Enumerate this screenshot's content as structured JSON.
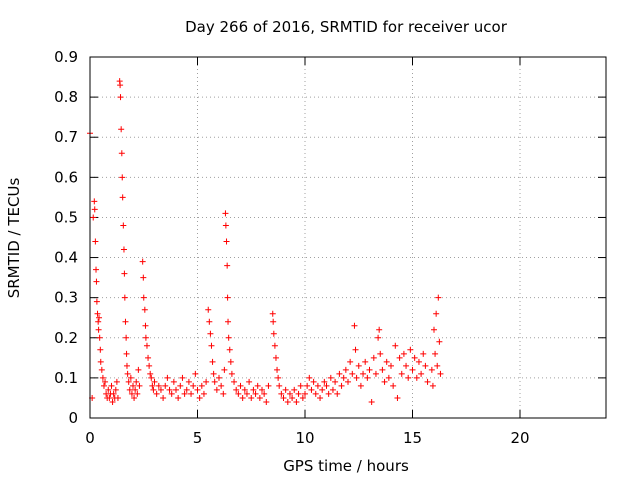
{
  "chart_data": {
    "type": "scatter",
    "title": "Day 266 of 2016, SRMTID for receiver ucor",
    "xlabel": "GPS time / hours",
    "ylabel": "SRMTID / TECUs",
    "xlim": [
      0,
      24
    ],
    "ylim": [
      0,
      0.9
    ],
    "xticks": [
      0,
      5,
      10,
      15,
      20
    ],
    "yticks": [
      0,
      0.1,
      0.2,
      0.3,
      0.4,
      0.5,
      0.6,
      0.7,
      0.8,
      0.9
    ],
    "xtick_labels": [
      "0",
      "5",
      "10",
      "15",
      "20"
    ],
    "ytick_labels": [
      "0",
      "0.1",
      "0.2",
      "0.3",
      "0.4",
      "0.5",
      "0.6",
      "0.7",
      "0.8",
      "0.9"
    ],
    "grid": true,
    "marker": "+",
    "color": "#ff0000",
    "series": [
      {
        "points": [
          [
            0.0,
            0.71
          ],
          [
            0.1,
            0.05
          ],
          [
            0.15,
            0.5
          ],
          [
            0.2,
            0.54
          ],
          [
            0.22,
            0.52
          ],
          [
            0.25,
            0.44
          ],
          [
            0.28,
            0.37
          ],
          [
            0.3,
            0.34
          ],
          [
            0.32,
            0.29
          ],
          [
            0.35,
            0.26
          ],
          [
            0.38,
            0.24
          ],
          [
            0.4,
            0.22
          ],
          [
            0.42,
            0.25
          ],
          [
            0.45,
            0.2
          ],
          [
            0.48,
            0.17
          ],
          [
            0.5,
            0.14
          ],
          [
            0.55,
            0.12
          ],
          [
            0.6,
            0.1
          ],
          [
            0.65,
            0.08
          ],
          [
            0.7,
            0.09
          ],
          [
            0.75,
            0.06
          ],
          [
            0.8,
            0.05
          ],
          [
            0.85,
            0.07
          ],
          [
            0.9,
            0.05
          ],
          [
            0.95,
            0.06
          ],
          [
            1.0,
            0.08
          ],
          [
            1.05,
            0.04
          ],
          [
            1.1,
            0.06
          ],
          [
            1.15,
            0.05
          ],
          [
            1.2,
            0.07
          ],
          [
            1.25,
            0.09
          ],
          [
            1.3,
            0.05
          ],
          [
            1.38,
            0.84
          ],
          [
            1.4,
            0.83
          ],
          [
            1.42,
            0.8
          ],
          [
            1.45,
            0.72
          ],
          [
            1.48,
            0.66
          ],
          [
            1.5,
            0.6
          ],
          [
            1.52,
            0.55
          ],
          [
            1.55,
            0.48
          ],
          [
            1.58,
            0.42
          ],
          [
            1.6,
            0.36
          ],
          [
            1.62,
            0.3
          ],
          [
            1.65,
            0.24
          ],
          [
            1.68,
            0.2
          ],
          [
            1.7,
            0.16
          ],
          [
            1.72,
            0.13
          ],
          [
            1.75,
            0.11
          ],
          [
            1.8,
            0.09
          ],
          [
            1.85,
            0.07
          ],
          [
            1.9,
            0.1
          ],
          [
            1.95,
            0.06
          ],
          [
            2.0,
            0.08
          ],
          [
            2.05,
            0.05
          ],
          [
            2.1,
            0.07
          ],
          [
            2.15,
            0.09
          ],
          [
            2.2,
            0.06
          ],
          [
            2.25,
            0.12
          ],
          [
            2.3,
            0.08
          ],
          [
            2.45,
            0.39
          ],
          [
            2.48,
            0.35
          ],
          [
            2.5,
            0.3
          ],
          [
            2.55,
            0.27
          ],
          [
            2.58,
            0.23
          ],
          [
            2.6,
            0.2
          ],
          [
            2.65,
            0.18
          ],
          [
            2.7,
            0.15
          ],
          [
            2.75,
            0.13
          ],
          [
            2.8,
            0.11
          ],
          [
            2.85,
            0.1
          ],
          [
            2.9,
            0.08
          ],
          [
            2.95,
            0.07
          ],
          [
            3.0,
            0.09
          ],
          [
            3.1,
            0.06
          ],
          [
            3.2,
            0.08
          ],
          [
            3.3,
            0.07
          ],
          [
            3.4,
            0.05
          ],
          [
            3.5,
            0.08
          ],
          [
            3.6,
            0.1
          ],
          [
            3.7,
            0.07
          ],
          [
            3.8,
            0.06
          ],
          [
            3.9,
            0.09
          ],
          [
            4.0,
            0.07
          ],
          [
            4.1,
            0.05
          ],
          [
            4.2,
            0.08
          ],
          [
            4.3,
            0.1
          ],
          [
            4.4,
            0.06
          ],
          [
            4.5,
            0.07
          ],
          [
            4.6,
            0.09
          ],
          [
            4.7,
            0.06
          ],
          [
            4.8,
            0.08
          ],
          [
            4.9,
            0.11
          ],
          [
            5.0,
            0.07
          ],
          [
            5.1,
            0.05
          ],
          [
            5.2,
            0.08
          ],
          [
            5.3,
            0.06
          ],
          [
            5.4,
            0.09
          ],
          [
            5.5,
            0.27
          ],
          [
            5.55,
            0.24
          ],
          [
            5.6,
            0.21
          ],
          [
            5.65,
            0.18
          ],
          [
            5.7,
            0.14
          ],
          [
            5.75,
            0.11
          ],
          [
            5.8,
            0.09
          ],
          [
            5.9,
            0.07
          ],
          [
            6.0,
            0.1
          ],
          [
            6.1,
            0.08
          ],
          [
            6.2,
            0.06
          ],
          [
            6.25,
            0.12
          ],
          [
            6.3,
            0.51
          ],
          [
            6.32,
            0.48
          ],
          [
            6.35,
            0.44
          ],
          [
            6.38,
            0.38
          ],
          [
            6.4,
            0.3
          ],
          [
            6.42,
            0.24
          ],
          [
            6.45,
            0.2
          ],
          [
            6.5,
            0.17
          ],
          [
            6.55,
            0.14
          ],
          [
            6.6,
            0.11
          ],
          [
            6.7,
            0.09
          ],
          [
            6.8,
            0.07
          ],
          [
            6.9,
            0.06
          ],
          [
            7.0,
            0.08
          ],
          [
            7.1,
            0.05
          ],
          [
            7.2,
            0.07
          ],
          [
            7.3,
            0.06
          ],
          [
            7.4,
            0.09
          ],
          [
            7.5,
            0.05
          ],
          [
            7.6,
            0.07
          ],
          [
            7.7,
            0.06
          ],
          [
            7.8,
            0.08
          ],
          [
            7.9,
            0.05
          ],
          [
            8.0,
            0.07
          ],
          [
            8.1,
            0.06
          ],
          [
            8.2,
            0.04
          ],
          [
            8.3,
            0.08
          ],
          [
            8.5,
            0.26
          ],
          [
            8.52,
            0.24
          ],
          [
            8.55,
            0.21
          ],
          [
            8.6,
            0.18
          ],
          [
            8.65,
            0.15
          ],
          [
            8.7,
            0.12
          ],
          [
            8.75,
            0.1
          ],
          [
            8.8,
            0.08
          ],
          [
            8.9,
            0.06
          ],
          [
            9.0,
            0.05
          ],
          [
            9.1,
            0.07
          ],
          [
            9.2,
            0.04
          ],
          [
            9.3,
            0.06
          ],
          [
            9.4,
            0.05
          ],
          [
            9.5,
            0.07
          ],
          [
            9.6,
            0.04
          ],
          [
            9.7,
            0.06
          ],
          [
            9.8,
            0.08
          ],
          [
            9.9,
            0.05
          ],
          [
            10.0,
            0.06
          ],
          [
            10.1,
            0.08
          ],
          [
            10.2,
            0.1
          ],
          [
            10.3,
            0.07
          ],
          [
            10.4,
            0.09
          ],
          [
            10.5,
            0.06
          ],
          [
            10.6,
            0.08
          ],
          [
            10.7,
            0.05
          ],
          [
            10.8,
            0.07
          ],
          [
            10.9,
            0.09
          ],
          [
            11.0,
            0.08
          ],
          [
            11.1,
            0.06
          ],
          [
            11.2,
            0.1
          ],
          [
            11.3,
            0.07
          ],
          [
            11.4,
            0.09
          ],
          [
            11.5,
            0.06
          ],
          [
            11.6,
            0.11
          ],
          [
            11.7,
            0.08
          ],
          [
            11.8,
            0.1
          ],
          [
            11.9,
            0.12
          ],
          [
            12.0,
            0.09
          ],
          [
            12.1,
            0.14
          ],
          [
            12.2,
            0.11
          ],
          [
            12.3,
            0.23
          ],
          [
            12.35,
            0.17
          ],
          [
            12.4,
            0.1
          ],
          [
            12.5,
            0.13
          ],
          [
            12.6,
            0.08
          ],
          [
            12.7,
            0.11
          ],
          [
            12.8,
            0.14
          ],
          [
            12.9,
            0.1
          ],
          [
            13.0,
            0.12
          ],
          [
            13.1,
            0.04
          ],
          [
            13.2,
            0.15
          ],
          [
            13.3,
            0.11
          ],
          [
            13.4,
            0.2
          ],
          [
            13.45,
            0.22
          ],
          [
            13.5,
            0.16
          ],
          [
            13.6,
            0.12
          ],
          [
            13.7,
            0.09
          ],
          [
            13.8,
            0.14
          ],
          [
            13.9,
            0.1
          ],
          [
            14.0,
            0.13
          ],
          [
            14.1,
            0.08
          ],
          [
            14.2,
            0.18
          ],
          [
            14.3,
            0.05
          ],
          [
            14.4,
            0.15
          ],
          [
            14.5,
            0.11
          ],
          [
            14.6,
            0.16
          ],
          [
            14.7,
            0.13
          ],
          [
            14.8,
            0.1
          ],
          [
            14.9,
            0.17
          ],
          [
            15.0,
            0.12
          ],
          [
            15.1,
            0.15
          ],
          [
            15.2,
            0.1
          ],
          [
            15.3,
            0.14
          ],
          [
            15.4,
            0.11
          ],
          [
            15.5,
            0.16
          ],
          [
            15.6,
            0.13
          ],
          [
            15.7,
            0.09
          ],
          [
            15.9,
            0.12
          ],
          [
            15.95,
            0.08
          ],
          [
            16.0,
            0.22
          ],
          [
            16.05,
            0.16
          ],
          [
            16.1,
            0.26
          ],
          [
            16.15,
            0.13
          ],
          [
            16.2,
            0.3
          ],
          [
            16.25,
            0.19
          ],
          [
            16.3,
            0.11
          ]
        ]
      }
    ]
  }
}
